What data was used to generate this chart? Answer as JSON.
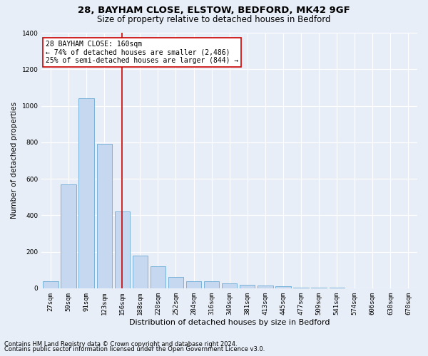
{
  "title1": "28, BAYHAM CLOSE, ELSTOW, BEDFORD, MK42 9GF",
  "title2": "Size of property relative to detached houses in Bedford",
  "xlabel": "Distribution of detached houses by size in Bedford",
  "ylabel": "Number of detached properties",
  "categories": [
    "27sqm",
    "59sqm",
    "91sqm",
    "123sqm",
    "156sqm",
    "188sqm",
    "220sqm",
    "252sqm",
    "284sqm",
    "316sqm",
    "349sqm",
    "381sqm",
    "413sqm",
    "445sqm",
    "477sqm",
    "509sqm",
    "541sqm",
    "574sqm",
    "606sqm",
    "638sqm",
    "670sqm"
  ],
  "values": [
    37,
    570,
    1040,
    790,
    420,
    180,
    120,
    60,
    40,
    40,
    25,
    20,
    15,
    10,
    5,
    3,
    2,
    1,
    0,
    0,
    0
  ],
  "bar_color": "#c5d8f0",
  "bar_edge_color": "#6aaad4",
  "vline_x_index": 4,
  "vline_color": "#cc0000",
  "annotation_text": "28 BAYHAM CLOSE: 160sqm\n← 74% of detached houses are smaller (2,486)\n25% of semi-detached houses are larger (844) →",
  "annotation_box_facecolor": "#ffffff",
  "annotation_box_edgecolor": "#cc0000",
  "ylim": [
    0,
    1400
  ],
  "yticks": [
    0,
    200,
    400,
    600,
    800,
    1000,
    1200,
    1400
  ],
  "footer1": "Contains HM Land Registry data © Crown copyright and database right 2024.",
  "footer2": "Contains public sector information licensed under the Open Government Licence v3.0.",
  "fig_facecolor": "#e8eef7",
  "plot_facecolor": "#e8eef7",
  "grid_color": "#ffffff",
  "title1_fontsize": 9.5,
  "title2_fontsize": 8.5,
  "xlabel_fontsize": 8,
  "ylabel_fontsize": 7.5,
  "tick_fontsize": 6.5,
  "annotation_fontsize": 7,
  "footer_fontsize": 6
}
